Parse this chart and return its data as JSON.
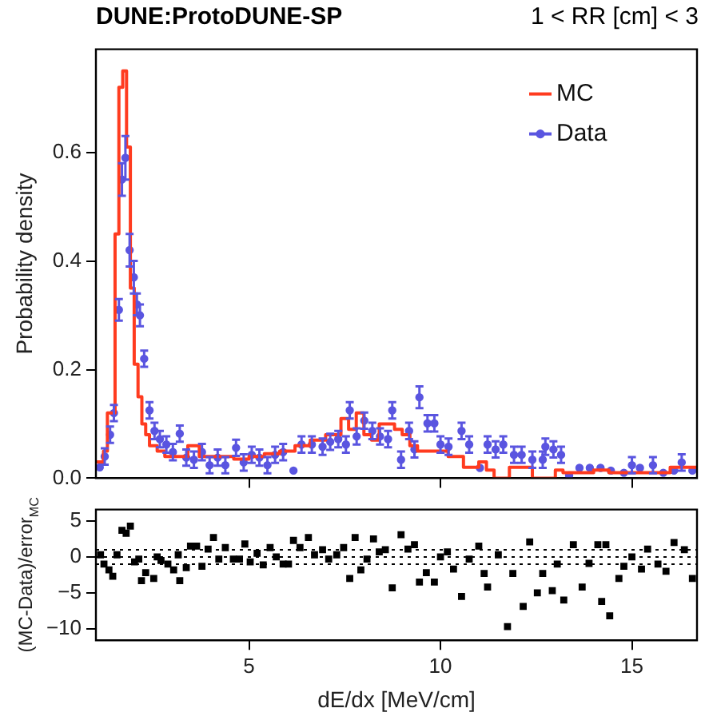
{
  "chart_data": [
    {
      "type": "step",
      "title": "DUNE:ProtoDUNE-SP",
      "subtitle": "1 < RR [cm] < 3",
      "ylabel": "Probability density",
      "xlim": [
        1,
        16.7
      ],
      "xticks": [
        5,
        10,
        15
      ],
      "ylim": [
        0,
        0.79
      ],
      "yticks": [
        {
          "value": 0,
          "label": "0.0"
        },
        0.2,
        0.4,
        0.6
      ],
      "tick_labels": "y",
      "grid": false,
      "legend": "top right",
      "series": [
        {
          "name": "MC",
          "type": "step",
          "color": "#ff3b1f",
          "line_style": "solid",
          "x": [
            1.0,
            1.2,
            1.3,
            1.5,
            1.6,
            1.7,
            1.8,
            1.9,
            2.0,
            2.1,
            2.2,
            2.3,
            2.4,
            2.6,
            2.8,
            3.0,
            3.4,
            3.7,
            3.9,
            4.2,
            4.6,
            5.0,
            5.4,
            5.8,
            6.2,
            6.6,
            7.0,
            7.4,
            7.6,
            7.8,
            8.0,
            8.2,
            8.4,
            8.6,
            8.8,
            9.0,
            9.2,
            9.4,
            9.8,
            10.2,
            10.6,
            11.0,
            11.2,
            11.4,
            11.8,
            12.0,
            12.4,
            13.0,
            13.2,
            13.6,
            14.0,
            14.4,
            14.8,
            15.2,
            15.6,
            16.0,
            16.4,
            16.7
          ],
          "values": [
            0.03,
            0.03,
            0.05,
            0.12,
            0.45,
            0.72,
            0.75,
            0.61,
            0.35,
            0.21,
            0.15,
            0.1,
            0.08,
            0.06,
            0.05,
            0.04,
            0.04,
            0.06,
            0.04,
            0.04,
            0.04,
            0.035,
            0.04,
            0.045,
            0.05,
            0.06,
            0.07,
            0.08,
            0.11,
            0.09,
            0.12,
            0.08,
            0.07,
            0.1,
            0.1,
            0.09,
            0.08,
            0.06,
            0.05,
            0.05,
            0.04,
            0.02,
            0.03,
            0.015,
            0.0,
            0.02,
            0.02,
            0.0,
            0.015,
            0.01,
            0.01,
            0.015,
            0.01,
            0.01,
            0.01,
            0.01,
            0.02,
            0.02
          ]
        },
        {
          "name": "Data",
          "type": "scatter",
          "color": "#5a55e0",
          "marker": "circle",
          "x": [
            1.1,
            1.23,
            1.37,
            1.47,
            1.6,
            1.68,
            1.77,
            1.88,
            1.99,
            2.07,
            2.15,
            2.26,
            2.4,
            2.53,
            2.67,
            2.84,
            3.01,
            3.19,
            3.36,
            3.56,
            3.77,
            3.97,
            4.18,
            4.38,
            4.66,
            4.86,
            5.07,
            5.27,
            5.48,
            5.68,
            5.89,
            6.16,
            6.37,
            6.64,
            6.92,
            7.12,
            7.33,
            7.53,
            7.63,
            7.81,
            8.01,
            8.22,
            8.42,
            8.63,
            8.74,
            8.97,
            9.18,
            9.32,
            9.45,
            9.66,
            9.84,
            10.0,
            10.21,
            10.55,
            10.75,
            11.03,
            11.23,
            11.44,
            11.64,
            11.92,
            12.12,
            12.4,
            12.67,
            12.74,
            12.95,
            13.15,
            13.36,
            13.63,
            13.9,
            14.18,
            14.45,
            14.79,
            15.0,
            15.21,
            15.55,
            15.82,
            16.1,
            16.3,
            16.58
          ],
          "values": [
            0.02,
            0.04,
            0.08,
            0.12,
            0.31,
            0.55,
            0.59,
            0.42,
            0.37,
            0.32,
            0.3,
            0.22,
            0.125,
            0.087,
            0.072,
            0.062,
            0.048,
            0.082,
            0.038,
            0.034,
            0.048,
            0.024,
            0.038,
            0.024,
            0.056,
            0.029,
            0.043,
            0.038,
            0.024,
            0.043,
            0.048,
            0.014,
            0.062,
            0.062,
            0.058,
            0.067,
            0.072,
            0.062,
            0.125,
            0.077,
            0.106,
            0.087,
            0.077,
            0.072,
            0.125,
            0.034,
            0.087,
            0.053,
            0.149,
            0.101,
            0.101,
            0.062,
            0.058,
            0.087,
            0.062,
            0.019,
            0.062,
            0.053,
            0.062,
            0.043,
            0.043,
            0.034,
            0.034,
            0.058,
            0.053,
            0.043,
            0.005,
            0.019,
            0.019,
            0.019,
            0.014,
            0.01,
            0.024,
            0.019,
            0.024,
            0.01,
            0.014,
            0.029,
            0.014
          ],
          "errors": [
            null,
            0.015,
            0.015,
            0.015,
            0.02,
            0.03,
            0.04,
            0.03,
            0.03,
            0.02,
            0.02,
            0.015,
            0.015,
            0.015,
            0.015,
            0.015,
            0.015,
            0.015,
            0.015,
            0.015,
            0.015,
            0.015,
            0.015,
            0.015,
            0.015,
            0.015,
            0.015,
            0.015,
            0.015,
            0.015,
            0.015,
            null,
            0.015,
            0.015,
            0.015,
            0.015,
            0.015,
            0.015,
            0.015,
            0.015,
            0.015,
            0.015,
            0.015,
            0.015,
            0.015,
            0.015,
            0.015,
            0.015,
            0.02,
            0.015,
            0.015,
            0.015,
            0.015,
            0.015,
            0.015,
            null,
            0.015,
            0.015,
            0.015,
            0.015,
            0.015,
            0.015,
            0.015,
            0.015,
            0.015,
            0.015,
            null,
            null,
            null,
            null,
            null,
            null,
            0.015,
            null,
            0.015,
            null,
            null,
            0.015,
            null
          ]
        }
      ]
    },
    {
      "type": "scatter",
      "xlabel": "dE/dx [MeV/cm]",
      "ylabel": "(MC-Data)/error$_{MC}$",
      "xlim": [
        1,
        16.7
      ],
      "xticks": [
        5,
        10,
        15
      ],
      "ylim": [
        -11.6,
        6.6
      ],
      "yticks": [
        5,
        0,
        {
          "value": -5,
          "label": "−5"
        },
        {
          "value": -10,
          "label": "−10"
        }
      ],
      "grid": false,
      "marker": "square",
      "ref_lines": [
        {
          "axis": "y",
          "value": 1,
          "line_style": "dotted"
        },
        {
          "axis": "y",
          "value": 0,
          "line_style": "dotted"
        },
        {
          "axis": "y",
          "value": -1,
          "line_style": "dotted"
        }
      ],
      "series": [
        {
          "color": "#000000",
          "x": [
            1.12,
            1.21,
            1.34,
            1.44,
            1.55,
            1.68,
            1.79,
            1.9,
            2.01,
            2.12,
            2.19,
            2.3,
            2.51,
            2.6,
            2.7,
            2.88,
            3.03,
            3.15,
            3.19,
            3.36,
            3.47,
            3.63,
            3.77,
            3.93,
            4.07,
            4.21,
            4.38,
            4.59,
            4.75,
            4.89,
            5.03,
            5.21,
            5.37,
            5.55,
            5.71,
            5.89,
            6.03,
            6.16,
            6.33,
            6.55,
            6.71,
            6.92,
            7.08,
            7.29,
            7.47,
            7.63,
            7.77,
            7.92,
            8.08,
            8.25,
            8.4,
            8.56,
            8.74,
            8.97,
            9.15,
            9.32,
            9.45,
            9.63,
            9.84,
            10.0,
            10.18,
            10.34,
            10.55,
            10.75,
            11.0,
            11.14,
            11.23,
            11.51,
            11.75,
            11.89,
            12.16,
            12.33,
            12.53,
            12.67,
            12.92,
            13.05,
            13.22,
            13.47,
            13.7,
            13.88,
            14.11,
            14.21,
            14.32,
            14.42,
            14.66,
            14.79,
            15.0,
            15.25,
            15.41,
            15.68,
            15.89,
            16.1,
            16.37,
            16.58
          ],
          "values": [
            0.3,
            -1.0,
            -1.8,
            -2.7,
            0.3,
            3.7,
            3.3,
            4.3,
            -0.7,
            -0.3,
            -3.3,
            -2.2,
            -3.0,
            0,
            -0.5,
            -1.0,
            -1.8,
            0.3,
            -3.3,
            -1.5,
            1.5,
            1.5,
            -1.3,
            1.1,
            2.7,
            -0.3,
            1.3,
            -0.3,
            -0.3,
            1.8,
            -0.7,
            0.5,
            -1.1,
            1.3,
            0,
            -1.0,
            -1.0,
            2.3,
            1.3,
            2.7,
            0.3,
            1.0,
            -0.3,
            0.3,
            1.3,
            -3.0,
            2.7,
            -1.8,
            -0.3,
            2.5,
            0.7,
            1.0,
            -4.3,
            3.1,
            1.1,
            1.7,
            -3.5,
            -2.2,
            -3.5,
            0,
            0.7,
            -1.7,
            -5.5,
            -0.3,
            1.5,
            -2.3,
            -4.2,
            0.3,
            -9.7,
            -2.3,
            -6.9,
            2.1,
            -5.0,
            -2.3,
            -4.7,
            -1.0,
            -6.0,
            1.7,
            -4.2,
            -0.9,
            1.7,
            -6.2,
            1.7,
            -8.2,
            -3.0,
            -1.3,
            0,
            -1.7,
            1.1,
            -1.0,
            -2.0,
            2.0,
            1.0,
            -3.0
          ]
        }
      ]
    }
  ]
}
